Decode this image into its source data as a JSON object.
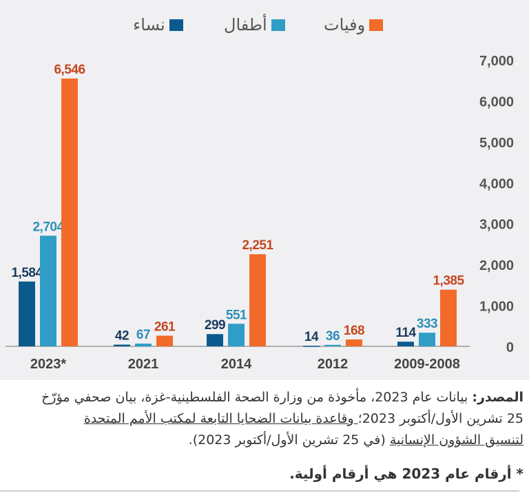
{
  "chart_data": {
    "type": "bar",
    "categories": [
      "2009-2008",
      "2012",
      "2014",
      "2021",
      "2023*"
    ],
    "series": [
      {
        "name": "وفيات",
        "color": "#f26b2a",
        "label_color": "#c4461e",
        "values": [
          1385,
          168,
          2251,
          261,
          6546
        ]
      },
      {
        "name": "أطفال",
        "color": "#2e9ec6",
        "label_color": "#2e8fb8",
        "values": [
          333,
          36,
          551,
          67,
          2704
        ]
      },
      {
        "name": "نساء",
        "color": "#0b5a8e",
        "label_color": "#173a5e",
        "values": [
          114,
          14,
          299,
          42,
          1584
        ]
      }
    ],
    "yticks": [
      "0",
      "1,000",
      "2,000",
      "3,000",
      "4,000",
      "5,000",
      "6,000",
      "7,000"
    ],
    "ylim": [
      0,
      7000
    ],
    "axis_side": "right",
    "direction": "rtl",
    "legend_position": "top",
    "grid": false
  },
  "source": {
    "label": "المصدر:",
    "line1": "بيانات عام 2023، مأخوذة من وزارة الصحة الفلسطينية-غزة، بيان صحفي مؤرّخ",
    "line2_plain": "25 تشرين الأول/أكتوبر 2023؛",
    "line2_link": " وقاعدة بيانات الضحايا التابعة لمكتب الأمم المتحدة",
    "line3_link": "لتنسيق الشؤون الإنسانية",
    "line3_plain": " (في 25 تشرين الأول/أكتوبر 2023)."
  },
  "note": "* أرقام عام 2023 هي أرقام أولية."
}
